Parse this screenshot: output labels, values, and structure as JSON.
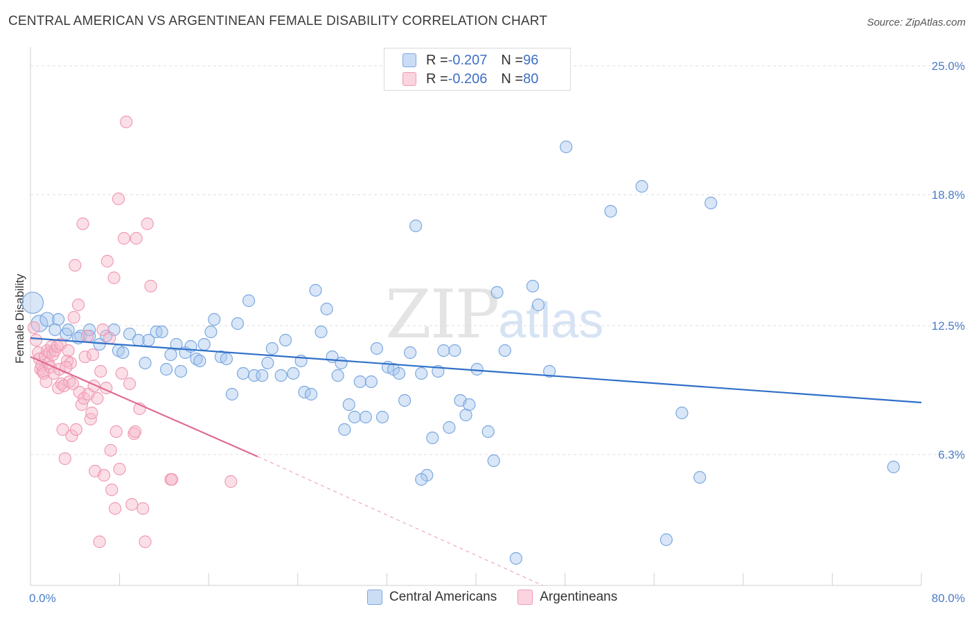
{
  "title": "CENTRAL AMERICAN VS ARGENTINEAN FEMALE DISABILITY CORRELATION CHART",
  "source": "Source: ZipAtlas.com",
  "watermark": {
    "zip": "ZIP",
    "atlas": "atlas"
  },
  "legend": {
    "rows": [
      {
        "r_label": "R = ",
        "r_value": "-0.207",
        "n_label": "N = ",
        "n_value": "96",
        "color": "#a9c7ee"
      },
      {
        "r_label": "R = ",
        "r_value": "-0.206",
        "n_label": "N = ",
        "n_value": "80",
        "color": "#f6b7c9"
      }
    ]
  },
  "bottom_legend": [
    {
      "label": "Central Americans",
      "color": "#a9c7ee"
    },
    {
      "label": "Argentineans",
      "color": "#f6b7c9"
    }
  ],
  "chart_data": {
    "type": "scatter",
    "title": "CENTRAL AMERICAN VS ARGENTINEAN FEMALE DISABILITY CORRELATION CHART",
    "xlabel": "",
    "ylabel": "Female Disability",
    "xlim": [
      0,
      80
    ],
    "ylim": [
      0,
      25.6
    ],
    "x_ticks": [
      "0.0%",
      "80.0%"
    ],
    "y_ticks": [
      {
        "value": 6.3,
        "label": "6.3%"
      },
      {
        "value": 12.5,
        "label": "12.5%"
      },
      {
        "value": 18.8,
        "label": "18.8%"
      },
      {
        "value": 25.0,
        "label": "25.0%"
      }
    ],
    "grid": "horizontal dashed",
    "colors": {
      "blue": "#7aa7e0",
      "blue_line": "#2f6fc8",
      "pink": "#f09ab4",
      "pink_line": "#e06a93"
    },
    "series": [
      {
        "name": "Central Americans",
        "color": "#a9c7ee",
        "trend": {
          "x": [
            0,
            80
          ],
          "y": [
            11.9,
            8.8
          ]
        },
        "points": [
          [
            0.2,
            13.6,
            1.8
          ],
          [
            0.8,
            12.6,
            1.4
          ],
          [
            1.5,
            12.8,
            1.2
          ],
          [
            2.5,
            12.8,
            1
          ],
          [
            2.2,
            12.3,
            1
          ],
          [
            3.2,
            12.1,
            1
          ],
          [
            3.4,
            12.3,
            1
          ],
          [
            4.5,
            12.0,
            1
          ],
          [
            5.3,
            12.0,
            1
          ],
          [
            4.3,
            11.9,
            1
          ],
          [
            5.3,
            12.3,
            1
          ],
          [
            6.2,
            11.6,
            1
          ],
          [
            6.8,
            12.0,
            1
          ],
          [
            7.5,
            12.3,
            1
          ],
          [
            7.9,
            11.3,
            1
          ],
          [
            8.3,
            11.2,
            1
          ],
          [
            8.9,
            12.1,
            1
          ],
          [
            9.7,
            11.8,
            1
          ],
          [
            10.3,
            10.7,
            1
          ],
          [
            10.6,
            11.8,
            1
          ],
          [
            11.3,
            12.2,
            1
          ],
          [
            11.8,
            12.2,
            1
          ],
          [
            12.2,
            10.4,
            1
          ],
          [
            12.6,
            11.1,
            1
          ],
          [
            13.1,
            11.6,
            1
          ],
          [
            13.5,
            10.3,
            1
          ],
          [
            13.9,
            11.2,
            1
          ],
          [
            14.4,
            11.5,
            1
          ],
          [
            14.9,
            10.9,
            1
          ],
          [
            15.2,
            10.8,
            1
          ],
          [
            15.6,
            11.6,
            1
          ],
          [
            16.2,
            12.2,
            1
          ],
          [
            16.5,
            12.8,
            1
          ],
          [
            17.1,
            11.0,
            1
          ],
          [
            17.6,
            10.9,
            1
          ],
          [
            18.1,
            9.2,
            1
          ],
          [
            18.6,
            12.6,
            1
          ],
          [
            19.1,
            10.2,
            1
          ],
          [
            19.6,
            13.7,
            1
          ],
          [
            20.1,
            10.1,
            1
          ],
          [
            20.8,
            10.1,
            1
          ],
          [
            21.3,
            10.7,
            1
          ],
          [
            21.7,
            11.4,
            1
          ],
          [
            22.5,
            10.1,
            1
          ],
          [
            22.9,
            11.8,
            1
          ],
          [
            23.6,
            10.2,
            1
          ],
          [
            24.3,
            10.8,
            1
          ],
          [
            24.6,
            9.3,
            1
          ],
          [
            25.2,
            9.2,
            1
          ],
          [
            25.6,
            14.2,
            1
          ],
          [
            26.1,
            12.2,
            1
          ],
          [
            26.6,
            13.3,
            1
          ],
          [
            27.1,
            11.0,
            1
          ],
          [
            27.6,
            10.1,
            1
          ],
          [
            27.9,
            10.7,
            1
          ],
          [
            28.6,
            8.7,
            1
          ],
          [
            28.2,
            7.5,
            1
          ],
          [
            29.1,
            8.1,
            1
          ],
          [
            29.6,
            9.8,
            1
          ],
          [
            30.1,
            8.1,
            1
          ],
          [
            30.6,
            9.8,
            1
          ],
          [
            31.1,
            11.4,
            1
          ],
          [
            31.6,
            8.1,
            1
          ],
          [
            32.1,
            10.5,
            1
          ],
          [
            32.6,
            10.4,
            1
          ],
          [
            33.1,
            10.2,
            1
          ],
          [
            33.6,
            8.9,
            1
          ],
          [
            34.1,
            11.2,
            1
          ],
          [
            34.6,
            17.3,
            1
          ],
          [
            35.1,
            10.2,
            1
          ],
          [
            35.6,
            5.3,
            1
          ],
          [
            36.1,
            7.1,
            1
          ],
          [
            36.6,
            10.3,
            1
          ],
          [
            37.1,
            11.3,
            1
          ],
          [
            37.6,
            7.6,
            1
          ],
          [
            38.1,
            11.3,
            1
          ],
          [
            38.6,
            8.9,
            1
          ],
          [
            39.1,
            8.2,
            1
          ],
          [
            39.4,
            8.7,
            1
          ],
          [
            40.1,
            10.4,
            1
          ],
          [
            41.1,
            7.4,
            1
          ],
          [
            41.6,
            6.0,
            1
          ],
          [
            41.9,
            14.1,
            1
          ],
          [
            42.6,
            11.3,
            1
          ],
          [
            45.1,
            14.4,
            1
          ],
          [
            45.6,
            13.5,
            1
          ],
          [
            46.6,
            10.3,
            1
          ],
          [
            48.1,
            21.1,
            1
          ],
          [
            52.1,
            18.0,
            1
          ],
          [
            54.9,
            19.2,
            1
          ],
          [
            57.1,
            2.2,
            1
          ],
          [
            58.5,
            8.3,
            1
          ],
          [
            60.1,
            5.2,
            1
          ],
          [
            61.1,
            18.4,
            1
          ],
          [
            77.5,
            5.7,
            1
          ],
          [
            43.6,
            1.3,
            1
          ],
          [
            35.1,
            5.1,
            1
          ]
        ]
      },
      {
        "name": "Argentineans",
        "color": "#f6b7c9",
        "trend": {
          "x": [
            0,
            20.4
          ],
          "y": [
            11.0,
            6.2
          ]
        },
        "trend_dashed": {
          "x": [
            20.4,
            46
          ],
          "y": [
            6.2,
            0
          ]
        },
        "points": [
          [
            0.3,
            12.4,
            1
          ],
          [
            0.5,
            11.8,
            1
          ],
          [
            0.7,
            11.2,
            1
          ],
          [
            0.8,
            10.9,
            1
          ],
          [
            0.9,
            10.4,
            1
          ],
          [
            1.0,
            10.6,
            1
          ],
          [
            1.1,
            10.3,
            1
          ],
          [
            1.2,
            10.2,
            1
          ],
          [
            1.3,
            11.0,
            1
          ],
          [
            1.4,
            9.8,
            1
          ],
          [
            1.5,
            11.3,
            1
          ],
          [
            1.6,
            10.7,
            1
          ],
          [
            1.7,
            11.2,
            1
          ],
          [
            1.8,
            10.5,
            1
          ],
          [
            1.9,
            11.5,
            1
          ],
          [
            2.0,
            11.1,
            1
          ],
          [
            2.1,
            10.2,
            1
          ],
          [
            2.2,
            11.3,
            1
          ],
          [
            2.4,
            11.5,
            1
          ],
          [
            2.5,
            9.5,
            1
          ],
          [
            2.6,
            10.4,
            1
          ],
          [
            2.7,
            11.6,
            1
          ],
          [
            2.8,
            9.7,
            1
          ],
          [
            2.9,
            7.5,
            1
          ],
          [
            3.0,
            9.6,
            1
          ],
          [
            3.1,
            6.1,
            1
          ],
          [
            3.3,
            10.8,
            1
          ],
          [
            3.4,
            11.3,
            1
          ],
          [
            3.5,
            9.8,
            1
          ],
          [
            3.6,
            10.7,
            1
          ],
          [
            3.7,
            7.2,
            1
          ],
          [
            3.8,
            9.7,
            1
          ],
          [
            3.9,
            12.9,
            1
          ],
          [
            4.0,
            15.4,
            1
          ],
          [
            4.1,
            7.5,
            1
          ],
          [
            4.3,
            13.5,
            1
          ],
          [
            4.4,
            9.3,
            1
          ],
          [
            4.6,
            8.7,
            1
          ],
          [
            4.7,
            17.4,
            1
          ],
          [
            4.8,
            9.0,
            1
          ],
          [
            4.9,
            11.0,
            1
          ],
          [
            5.1,
            12.0,
            1
          ],
          [
            5.2,
            9.2,
            1
          ],
          [
            5.4,
            8.0,
            1
          ],
          [
            5.5,
            8.3,
            1
          ],
          [
            5.6,
            11.1,
            1
          ],
          [
            5.7,
            9.6,
            1
          ],
          [
            5.8,
            5.5,
            1
          ],
          [
            6.0,
            9.0,
            1
          ],
          [
            6.2,
            2.1,
            1
          ],
          [
            6.3,
            10.3,
            1
          ],
          [
            6.5,
            12.3,
            1
          ],
          [
            6.6,
            5.3,
            1
          ],
          [
            6.8,
            9.5,
            1
          ],
          [
            6.9,
            15.6,
            1
          ],
          [
            7.1,
            11.9,
            1
          ],
          [
            7.2,
            6.5,
            1
          ],
          [
            7.3,
            4.6,
            1
          ],
          [
            7.5,
            14.8,
            1
          ],
          [
            7.6,
            3.7,
            1
          ],
          [
            7.7,
            7.4,
            1
          ],
          [
            7.9,
            18.6,
            1
          ],
          [
            8.0,
            5.6,
            1
          ],
          [
            8.2,
            10.2,
            1
          ],
          [
            8.4,
            16.7,
            1
          ],
          [
            8.6,
            22.3,
            1
          ],
          [
            8.9,
            9.7,
            1
          ],
          [
            9.1,
            3.9,
            1
          ],
          [
            9.3,
            7.3,
            1
          ],
          [
            9.5,
            16.7,
            1
          ],
          [
            9.8,
            8.5,
            1
          ],
          [
            10.1,
            3.7,
            1
          ],
          [
            10.3,
            2.1,
            1
          ],
          [
            10.8,
            14.4,
            1
          ],
          [
            10.5,
            17.4,
            1
          ],
          [
            12.6,
            5.1,
            1
          ],
          [
            12.7,
            5.1,
            1
          ],
          [
            18.0,
            5.0,
            1
          ],
          [
            9.4,
            7.4,
            1
          ],
          [
            3.2,
            10.5,
            1
          ]
        ]
      }
    ]
  }
}
